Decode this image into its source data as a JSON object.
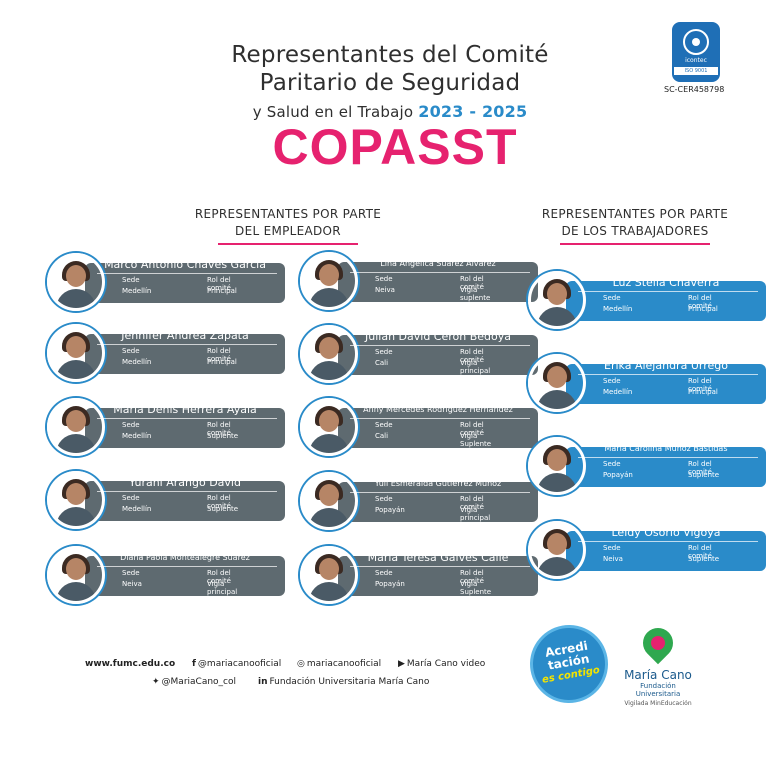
{
  "header": {
    "line1": "Representantes del Comité",
    "line2": "Paritario de Seguridad",
    "line3_text": "y Salud en el Trabajo ",
    "line3_years": "2023 - 2025",
    "acronym": "COPASST"
  },
  "certification": {
    "brand": "icontec",
    "standard": "ISO 9001",
    "code": "SC-CER458798"
  },
  "employer_section": {
    "title_line1": "REPRESENTANTES POR PARTE",
    "title_line2": "DEL EMPLEADOR"
  },
  "worker_section": {
    "title_line1": "REPRESENTANTES POR PARTE",
    "title_line2": "DE LOS TRABAJADORES"
  },
  "labels": {
    "sede": "Sede",
    "rol": "Rol del comité"
  },
  "employer_left": [
    {
      "name": "Marco Antonio Chaves García",
      "sede": "Medellín",
      "rol": "Principal"
    },
    {
      "name": "Jennifer Andrea Zapata",
      "sede": "Medellín",
      "rol": "Principal"
    },
    {
      "name": "María Denis Herrera Ayala",
      "sede": "Medellín",
      "rol": "Suplente"
    },
    {
      "name": "Yurani Arango David",
      "sede": "Medellín",
      "rol": "Suplente"
    },
    {
      "name": "Diana Paola Montealegre Suárez",
      "sede": "Neiva",
      "rol": "Vigía principal"
    }
  ],
  "employer_right": [
    {
      "name": "Lina Angélica Suárez Álvarez",
      "sede": "Neiva",
      "rol": "Vigía suplente"
    },
    {
      "name": "Julián David Cerón Bedoya",
      "sede": "Cali",
      "rol": "Vigía principal"
    },
    {
      "name": "Anny Mercedes Rodríguez Hernández",
      "sede": "Cali",
      "rol": "Vigía Suplente"
    },
    {
      "name": "Yuli Esmeralda Gutiérrez Muñoz",
      "sede": "Popayán",
      "rol": "Vigía principal"
    },
    {
      "name": "María Teresa Galves Calle",
      "sede": "Popayán",
      "rol": "Vigía Suplente"
    }
  ],
  "workers": [
    {
      "name": "Luz Stella Chaverra",
      "sede": "Medellín",
      "rol": "Principal"
    },
    {
      "name": "Erika Alejandra Urrego",
      "sede": "Medellín",
      "rol": "Principal"
    },
    {
      "name": "María Carolina Muñoz Bastidas",
      "sede": "Popayán",
      "rol": "Suplente"
    },
    {
      "name": "Leidy Osorio Vigoya",
      "sede": "Neiva",
      "rol": "Suplente"
    }
  ],
  "footer": {
    "website": "www.fumc.edu.co",
    "facebook": "@mariacanooficial",
    "instagram": "mariacanooficial",
    "youtube": "María Cano video",
    "twitter": "@MariaCano_col",
    "linkedin": "Fundación Universitaria María Cano"
  },
  "badges": {
    "acred_line1": "Acredi",
    "acred_line2": "tación",
    "acred_line3": "es contigo",
    "logo_name": "María Cano",
    "logo_sub": "Fundación Universitaria",
    "logo_vigilada": "Vigilada MinEducación"
  },
  "colors": {
    "accent_pink": "#e6226f",
    "accent_blue": "#2a8bc9",
    "card_gray": "#5e6a70"
  }
}
